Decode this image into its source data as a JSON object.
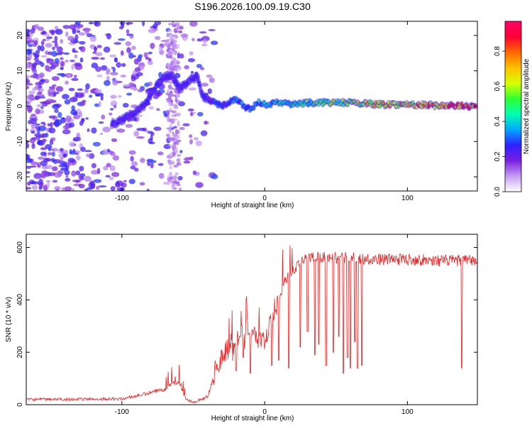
{
  "title": "S196.2026.100.09.19.C30",
  "chart_data": [
    {
      "type": "heatmap",
      "name": "spectrogram",
      "xlabel": "Height of straight line (km)",
      "ylabel": "Frequency (Hz)",
      "xlim": [
        -167,
        149
      ],
      "ylim": [
        -24,
        24
      ],
      "xticks": [
        -100,
        0,
        100
      ],
      "xtick_labels": [
        "-100",
        "0",
        "100"
      ],
      "yticks": [
        -20,
        -10,
        0,
        10,
        20
      ],
      "ytick_labels": [
        "-20",
        "-10",
        "0",
        "10",
        "20"
      ],
      "colorbar": {
        "label": "Normalized spectral amplitude",
        "range": [
          0,
          0.97
        ],
        "ticks": [
          0,
          0.2,
          0.4,
          0.6,
          0.8
        ],
        "tick_labels": [
          "0.0",
          "0.2",
          "0.4",
          "0.6",
          "0.8"
        ],
        "colors": [
          "#ffffff",
          "#c59cf2",
          "#7a1fe0",
          "#2f20ff",
          "#00a8ff",
          "#00ffb0",
          "#30ff30",
          "#d8ff00",
          "#ffbf00",
          "#ff6600",
          "#ff0033",
          "#ff006a"
        ]
      },
      "ridge": {
        "x": [
          -107,
          -100,
          -92,
          -85,
          -80,
          -75,
          -70,
          -65,
          -60,
          -55,
          -50,
          -47,
          -44,
          -40,
          -35,
          -30,
          -25,
          -20,
          -15,
          -10,
          -5,
          0,
          10,
          20,
          30,
          40,
          60,
          80,
          100,
          120,
          148
        ],
        "y": [
          -5,
          -4,
          -2,
          0,
          3,
          6,
          8,
          9,
          5,
          6,
          8,
          8,
          3,
          2,
          1,
          0,
          1,
          2,
          0,
          -1,
          1,
          0.5,
          1,
          0.5,
          1,
          1,
          1,
          0.5,
          0.5,
          0.2,
          0
        ]
      },
      "noise_region_x": [
        -167,
        -35
      ],
      "stripe_x": -64
    },
    {
      "type": "line",
      "name": "snr",
      "xlabel": "Height of straight line (km)",
      "ylabel": "SNR (10 * v/v)",
      "xlim": [
        -167,
        149
      ],
      "ylim": [
        0,
        650
      ],
      "xticks": [
        -100,
        0,
        100
      ],
      "xtick_labels": [
        "-100",
        "0",
        "100"
      ],
      "yticks": [
        0,
        200,
        400,
        600
      ],
      "ytick_labels": [
        "0",
        "200",
        "400",
        "600"
      ],
      "color": "#ee2222",
      "baseline": {
        "x": [
          -167,
          -100,
          -80,
          -70,
          -65,
          -60,
          -55,
          -50,
          -45,
          -40,
          -35,
          -30,
          -25,
          -20,
          -15,
          -10,
          -5,
          0,
          5,
          10,
          15,
          20,
          25,
          30,
          40,
          50,
          60,
          80,
          100,
          120,
          149
        ],
        "y": [
          20,
          22,
          45,
          60,
          80,
          80,
          20,
          10,
          20,
          30,
          120,
          180,
          230,
          250,
          270,
          290,
          250,
          240,
          330,
          420,
          480,
          510,
          540,
          560,
          565,
          560,
          560,
          555,
          555,
          550,
          550
        ]
      },
      "dips": [
        {
          "x": -20,
          "y": 130
        },
        {
          "x": -15,
          "y": 180
        },
        {
          "x": -10,
          "y": 120
        },
        {
          "x": 5,
          "y": 150
        },
        {
          "x": 10,
          "y": 170
        },
        {
          "x": 17,
          "y": 140
        },
        {
          "x": 25,
          "y": 220
        },
        {
          "x": 30,
          "y": 280
        },
        {
          "x": 35,
          "y": 190
        },
        {
          "x": 38,
          "y": 230
        },
        {
          "x": 43,
          "y": 150
        },
        {
          "x": 48,
          "y": 200
        },
        {
          "x": 52,
          "y": 260
        },
        {
          "x": 55,
          "y": 120
        },
        {
          "x": 58,
          "y": 180
        },
        {
          "x": 60,
          "y": 140
        },
        {
          "x": 63,
          "y": 240
        },
        {
          "x": 65,
          "y": 140
        },
        {
          "x": 68,
          "y": 150
        },
        {
          "x": 138,
          "y": 140
        }
      ]
    }
  ]
}
